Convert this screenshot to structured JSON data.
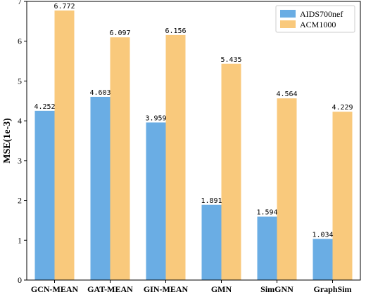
{
  "chart_data": {
    "type": "bar",
    "title": "",
    "xlabel": "",
    "ylabel": "MSE(1e-3)",
    "ylim": [
      0,
      7
    ],
    "yticks": [
      "0",
      "1",
      "2",
      "3",
      "4",
      "5",
      "6",
      "7"
    ],
    "grid": false,
    "legend_position": "top-right",
    "categories": [
      "GCN-MEAN",
      "GAT-MEAN",
      "GIN-MEAN",
      "GMN",
      "SimGNN",
      "GraphSim"
    ],
    "series": [
      {
        "name": "AIDS700nef",
        "color": "#6aade4",
        "values": [
          4.252,
          4.603,
          3.959,
          1.891,
          1.594,
          1.034
        ],
        "labels": [
          "4.252",
          "4.603",
          "3.959",
          "1.891",
          "1.594",
          "1.034"
        ]
      },
      {
        "name": "ACM1000",
        "color": "#f9c97c",
        "values": [
          6.772,
          6.097,
          6.156,
          5.435,
          4.564,
          4.229
        ],
        "labels": [
          "6.772",
          "6.097",
          "6.156",
          "5.435",
          "4.564",
          "4.229"
        ]
      }
    ]
  }
}
